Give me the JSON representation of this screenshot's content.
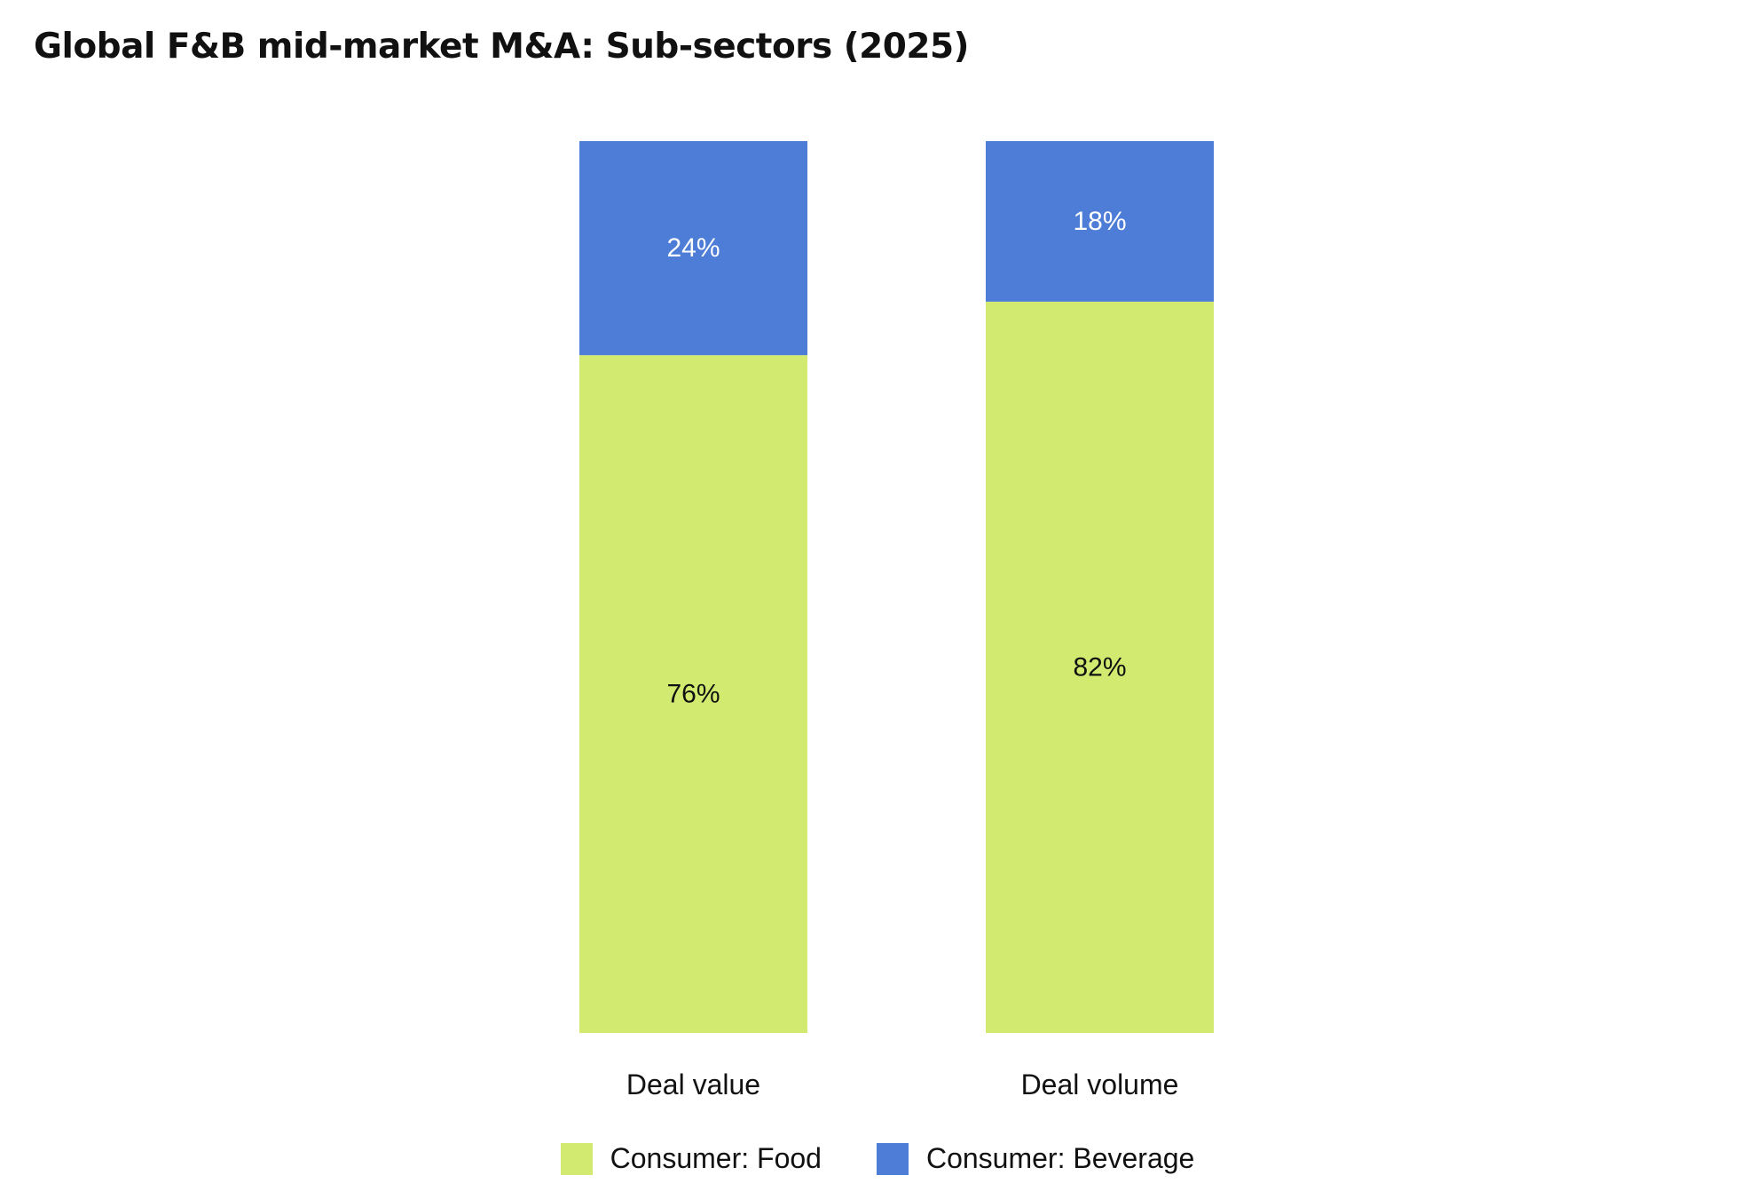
{
  "chart_data": {
    "type": "bar",
    "stacked": true,
    "normalized_percent": true,
    "title": "Global F&B mid-market M&A: Sub-sectors (2025)",
    "categories": [
      "Deal value",
      "Deal volume"
    ],
    "series": [
      {
        "name": "Consumer: Food",
        "values": [
          76,
          82
        ],
        "labels": [
          "76%",
          "82%"
        ],
        "color": "#d2ea6f",
        "label_color": "#111111"
      },
      {
        "name": "Consumer: Beverage",
        "values": [
          24,
          18
        ],
        "labels": [
          "24%",
          "18%"
        ],
        "color": "#4d7dd6",
        "label_color": "#ffffff"
      }
    ],
    "ylim": [
      0,
      100
    ],
    "grid": false,
    "legend_position": "bottom-center"
  }
}
